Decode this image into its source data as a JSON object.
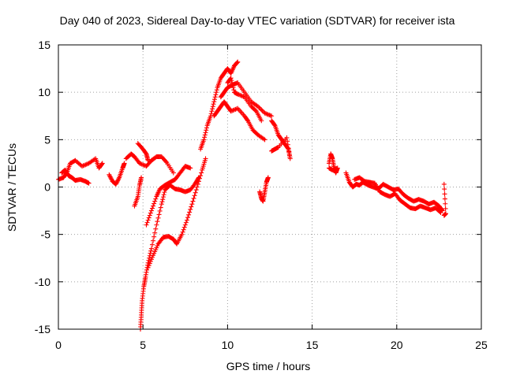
{
  "chart_data": {
    "type": "scatter",
    "title": "Day 040 of 2023, Sidereal Day-to-day VTEC variation (SDTVAR) for receiver ista",
    "xlabel": "GPS time / hours",
    "ylabel": "SDTVAR / TECUs",
    "xlim": [
      0,
      25
    ],
    "ylim": [
      -15,
      15
    ],
    "xticks": [
      0,
      5,
      10,
      15,
      20,
      25
    ],
    "xtick_labels": [
      "0",
      "5",
      "10",
      "15",
      "20",
      "25"
    ],
    "yticks": [
      -15,
      -10,
      -5,
      0,
      5,
      10,
      15
    ],
    "ytick_labels": [
      "-15",
      "-10",
      "-5",
      "0",
      "5",
      "10",
      "15"
    ],
    "grid": true,
    "marker": "plus",
    "series": [
      {
        "name": "SDTVAR",
        "color": "#ff0000",
        "segments": [
          [
            [
              0.0,
              0.8
            ],
            [
              0.3,
              1.0
            ],
            [
              0.5,
              1.5
            ],
            [
              0.7,
              2.5
            ],
            [
              1.0,
              2.8
            ],
            [
              1.4,
              2.2
            ],
            [
              1.8,
              2.5
            ],
            [
              2.2,
              3.0
            ],
            [
              2.4,
              2.0
            ],
            [
              2.6,
              2.5
            ]
          ],
          [
            [
              0.2,
              1.5
            ],
            [
              0.4,
              1.8
            ],
            [
              0.6,
              1.2
            ],
            [
              0.8,
              1.0
            ],
            [
              1.0,
              0.7
            ],
            [
              1.3,
              0.8
            ],
            [
              1.6,
              0.6
            ],
            [
              1.8,
              0.4
            ]
          ],
          [
            [
              3.0,
              1.3
            ],
            [
              3.2,
              0.6
            ],
            [
              3.4,
              0.3
            ],
            [
              3.6,
              1.0
            ],
            [
              3.8,
              2.0
            ],
            [
              3.9,
              2.5
            ]
          ],
          [
            [
              4.0,
              3.0
            ],
            [
              4.3,
              3.5
            ],
            [
              4.5,
              3.2
            ],
            [
              4.8,
              2.5
            ],
            [
              5.2,
              2.2
            ],
            [
              5.5,
              2.8
            ],
            [
              5.8,
              3.2
            ],
            [
              6.1,
              3.2
            ],
            [
              6.4,
              2.6
            ],
            [
              6.8,
              1.5
            ]
          ],
          [
            [
              4.7,
              4.6
            ],
            [
              5.0,
              4.0
            ],
            [
              5.2,
              3.5
            ],
            [
              5.3,
              2.8
            ]
          ],
          [
            [
              4.9,
              1.0
            ],
            [
              4.8,
              0.2
            ],
            [
              4.7,
              -1.0
            ],
            [
              4.5,
              -2.0
            ]
          ],
          [
            [
              4.85,
              -15.0
            ],
            [
              4.9,
              -13.5
            ],
            [
              4.95,
              -12.0
            ],
            [
              5.05,
              -10.5
            ],
            [
              5.15,
              -9.5
            ],
            [
              5.3,
              -8.0
            ],
            [
              5.5,
              -6.5
            ],
            [
              5.8,
              -4.0
            ],
            [
              6.1,
              -1.8
            ],
            [
              6.3,
              -0.3
            ],
            [
              6.6,
              0.2
            ],
            [
              6.9,
              -0.2
            ],
            [
              7.2,
              -0.3
            ],
            [
              7.5,
              -0.5
            ],
            [
              7.8,
              -0.3
            ],
            [
              8.1,
              0.4
            ],
            [
              8.3,
              1.0
            ]
          ],
          [
            [
              5.2,
              -4.0
            ],
            [
              5.5,
              -2.5
            ],
            [
              5.8,
              -1.0
            ],
            [
              6.0,
              -0.2
            ],
            [
              6.3,
              0.2
            ],
            [
              6.6,
              0.5
            ],
            [
              6.9,
              0.8
            ],
            [
              7.2,
              1.5
            ],
            [
              7.5,
              2.2
            ],
            [
              7.8,
              2.0
            ]
          ],
          [
            [
              5.3,
              -8.5
            ],
            [
              5.6,
              -7.2
            ],
            [
              5.9,
              -6.0
            ],
            [
              6.2,
              -5.3
            ],
            [
              6.5,
              -5.2
            ],
            [
              6.8,
              -5.5
            ],
            [
              7.0,
              -6.0
            ],
            [
              7.3,
              -5.0
            ],
            [
              7.6,
              -3.5
            ],
            [
              7.9,
              -1.8
            ],
            [
              8.2,
              0.0
            ],
            [
              8.5,
              1.8
            ],
            [
              8.7,
              3.0
            ]
          ],
          [
            [
              8.4,
              4.0
            ],
            [
              8.6,
              5.0
            ],
            [
              8.8,
              6.5
            ],
            [
              9.0,
              7.5
            ],
            [
              9.2,
              9.0
            ],
            [
              9.4,
              10.5
            ],
            [
              9.6,
              11.5
            ],
            [
              9.8,
              12.0
            ],
            [
              10.0,
              12.5
            ],
            [
              10.2,
              12.0
            ],
            [
              10.4,
              12.8
            ],
            [
              10.6,
              13.2
            ]
          ],
          [
            [
              9.2,
              7.5
            ],
            [
              9.4,
              8.0
            ],
            [
              9.6,
              8.5
            ],
            [
              9.8,
              9.0
            ],
            [
              10.0,
              8.5
            ],
            [
              10.2,
              8.0
            ],
            [
              10.6,
              8.3
            ],
            [
              11.0,
              7.5
            ],
            [
              11.2,
              7.0
            ],
            [
              11.5,
              6.0
            ],
            [
              11.8,
              5.5
            ],
            [
              12.2,
              5.0
            ]
          ],
          [
            [
              9.6,
              9.5
            ],
            [
              9.8,
              10.0
            ],
            [
              10.0,
              10.5
            ],
            [
              10.3,
              10.8
            ],
            [
              10.6,
              11.0
            ],
            [
              11.0,
              10.0
            ],
            [
              11.4,
              9.0
            ],
            [
              11.8,
              8.5
            ],
            [
              12.2,
              7.8
            ],
            [
              12.6,
              7.5
            ]
          ],
          [
            [
              10.0,
              11.0
            ],
            [
              10.2,
              11.5
            ],
            [
              10.4,
              10.0
            ],
            [
              10.6,
              9.8
            ],
            [
              11.0,
              9.5
            ],
            [
              11.4,
              8.5
            ],
            [
              11.7,
              8.0
            ],
            [
              12.0,
              7.0
            ]
          ],
          [
            [
              11.9,
              -0.5
            ],
            [
              12.0,
              -1.2
            ],
            [
              12.1,
              -1.5
            ],
            [
              12.2,
              -0.5
            ],
            [
              12.3,
              0.5
            ],
            [
              12.4,
              1.0
            ]
          ],
          [
            [
              12.6,
              7.0
            ],
            [
              12.8,
              6.5
            ],
            [
              13.0,
              5.5
            ],
            [
              13.2,
              5.0
            ],
            [
              13.4,
              4.5
            ],
            [
              13.6,
              4.0
            ],
            [
              13.7,
              3.0
            ],
            [
              13.5,
              5.2
            ],
            [
              13.0,
              4.2
            ],
            [
              12.8,
              4.0
            ],
            [
              12.6,
              3.8
            ]
          ],
          [
            [
              16.0,
              2.5
            ],
            [
              16.1,
              3.5
            ],
            [
              16.2,
              3.0
            ],
            [
              16.3,
              2.0
            ],
            [
              16.4,
              1.5
            ],
            [
              16.5,
              2.0
            ],
            [
              16.2,
              1.8
            ],
            [
              16.0,
              2.0
            ]
          ],
          [
            [
              17.0,
              1.5
            ],
            [
              17.2,
              0.5
            ],
            [
              17.4,
              0.0
            ],
            [
              17.6,
              0.3
            ],
            [
              17.8,
              0.2
            ],
            [
              18.0,
              0.5
            ],
            [
              18.3,
              0.2
            ],
            [
              18.6,
              0.0
            ],
            [
              18.9,
              -0.2
            ],
            [
              19.2,
              0.3
            ],
            [
              19.5,
              0.0
            ],
            [
              19.8,
              -0.3
            ],
            [
              20.1,
              -0.2
            ],
            [
              20.4,
              -0.8
            ],
            [
              20.7,
              -1.2
            ],
            [
              21.0,
              -1.5
            ],
            [
              21.3,
              -1.3
            ],
            [
              21.6,
              -1.5
            ],
            [
              21.9,
              -1.8
            ],
            [
              22.2,
              -1.6
            ],
            [
              22.5,
              -2.0
            ],
            [
              22.7,
              -2.5
            ]
          ],
          [
            [
              17.5,
              0.8
            ],
            [
              17.8,
              1.0
            ],
            [
              18.1,
              0.6
            ],
            [
              18.4,
              0.5
            ],
            [
              18.7,
              0.4
            ],
            [
              19.0,
              -0.5
            ],
            [
              19.3,
              -0.8
            ],
            [
              19.6,
              -1.0
            ],
            [
              19.9,
              -0.7
            ],
            [
              20.2,
              -1.4
            ],
            [
              20.5,
              -1.8
            ],
            [
              20.8,
              -2.2
            ],
            [
              21.1,
              -2.3
            ],
            [
              21.4,
              -2.0
            ],
            [
              21.7,
              -2.2
            ],
            [
              22.0,
              -2.4
            ],
            [
              22.3,
              -2.2
            ],
            [
              22.6,
              -2.7
            ]
          ],
          [
            [
              22.8,
              -3.0
            ],
            [
              22.9,
              -2.8
            ],
            [
              22.8,
              0.3
            ]
          ]
        ]
      }
    ]
  }
}
